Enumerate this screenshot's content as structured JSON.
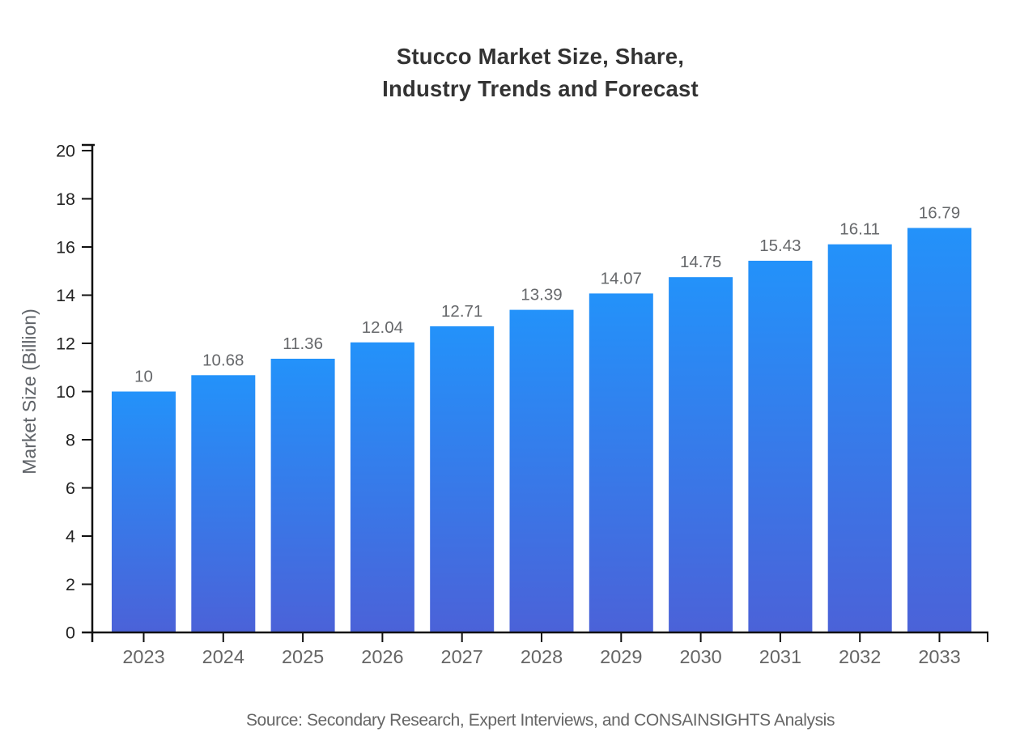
{
  "chart": {
    "title": "Stucco Market Size, Share,\nIndustry Trends and Forecast",
    "ylabel": "Market Size (Billion)",
    "source": "Source: Secondary Research, Expert Interviews, and CONSAINSIGHTS Analysis"
  },
  "chart_data": {
    "type": "bar",
    "title": "Stucco Market Size, Share, Industry Trends and Forecast",
    "xlabel": "",
    "ylabel": "Market Size (Billion)",
    "categories": [
      "2023",
      "2024",
      "2025",
      "2026",
      "2027",
      "2028",
      "2029",
      "2030",
      "2031",
      "2032",
      "2033"
    ],
    "values": [
      10,
      10.68,
      11.36,
      12.04,
      12.71,
      13.39,
      14.07,
      14.75,
      15.43,
      16.11,
      16.79
    ],
    "value_labels": [
      "10",
      "10.68",
      "11.36",
      "12.04",
      "12.71",
      "13.39",
      "14.07",
      "14.75",
      "15.43",
      "16.11",
      "16.79"
    ],
    "ylim": [
      0,
      20
    ],
    "yticks": [
      0,
      2,
      4,
      6,
      8,
      10,
      12,
      14,
      16,
      18,
      20
    ],
    "grid": false,
    "legend": null,
    "colors": {
      "bar_gradient_top": "#2392fa",
      "bar_gradient_bottom": "#4b62d8",
      "axis": "#111111",
      "ytick_label": "#222222",
      "xtick_label": "#666666",
      "value_label": "#66686b",
      "title": "#333333",
      "source": "#666666"
    }
  }
}
